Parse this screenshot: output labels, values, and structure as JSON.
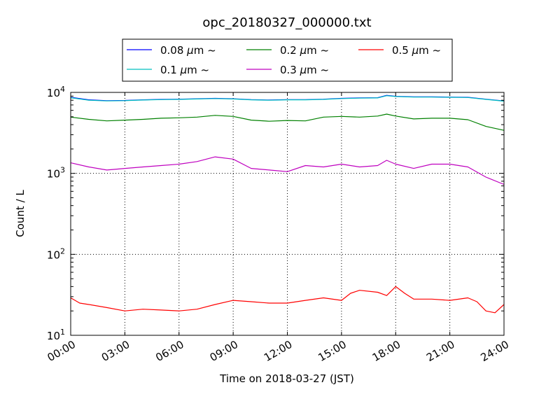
{
  "chart_data": {
    "type": "line",
    "title": "opc_20180327_000000.txt",
    "xlabel": "Time on 2018-03-27 (JST)",
    "ylabel": "Count / L",
    "x_unit": "hour",
    "x_ticks": [
      {
        "value": 0,
        "label": "00:00"
      },
      {
        "value": 3,
        "label": "03:00"
      },
      {
        "value": 6,
        "label": "06:00"
      },
      {
        "value": 9,
        "label": "09:00"
      },
      {
        "value": 12,
        "label": "12:00"
      },
      {
        "value": 15,
        "label": "15:00"
      },
      {
        "value": 18,
        "label": "18:00"
      },
      {
        "value": 21,
        "label": "21:00"
      },
      {
        "value": 24,
        "label": "24:00"
      }
    ],
    "y_ticks": [
      {
        "value": 10,
        "base": "10",
        "exp": "1"
      },
      {
        "value": 100,
        "base": "10",
        "exp": "2"
      },
      {
        "value": 1000,
        "base": "10",
        "exp": "3"
      },
      {
        "value": 10000,
        "base": "10",
        "exp": "4"
      }
    ],
    "xlim": [
      0,
      24
    ],
    "ylim": [
      10,
      10000
    ],
    "yscale": "log",
    "grid": true,
    "legend_position": "top, above plot, 3 columns",
    "legend_suffix": "~",
    "series": [
      {
        "name": "0.08 μm ~",
        "size": "0.08",
        "color": "#0000ff",
        "values": [
          [
            0,
            8700
          ],
          [
            1,
            8100
          ],
          [
            2,
            7900
          ],
          [
            3,
            7950
          ],
          [
            4,
            8100
          ],
          [
            5,
            8200
          ],
          [
            6,
            8250
          ],
          [
            7,
            8350
          ],
          [
            8,
            8450
          ],
          [
            9,
            8350
          ],
          [
            10,
            8150
          ],
          [
            11,
            8050
          ],
          [
            12,
            8150
          ],
          [
            13,
            8150
          ],
          [
            14,
            8250
          ],
          [
            15,
            8450
          ],
          [
            16,
            8550
          ],
          [
            17,
            8600
          ],
          [
            17.5,
            9200
          ],
          [
            18,
            8950
          ],
          [
            19,
            8800
          ],
          [
            20,
            8800
          ],
          [
            21,
            8750
          ],
          [
            22,
            8700
          ],
          [
            23,
            8250
          ],
          [
            24,
            7850
          ]
        ]
      },
      {
        "name": "0.1 μm ~",
        "size": "0.1",
        "color": "#00bfbf",
        "values": [
          [
            0,
            8600
          ],
          [
            1,
            8000
          ],
          [
            2,
            7850
          ],
          [
            3,
            7900
          ],
          [
            4,
            8050
          ],
          [
            5,
            8150
          ],
          [
            6,
            8200
          ],
          [
            7,
            8300
          ],
          [
            8,
            8400
          ],
          [
            9,
            8300
          ],
          [
            10,
            8100
          ],
          [
            11,
            8000
          ],
          [
            12,
            8100
          ],
          [
            13,
            8100
          ],
          [
            14,
            8200
          ],
          [
            15,
            8400
          ],
          [
            16,
            8500
          ],
          [
            17,
            8550
          ],
          [
            17.5,
            9100
          ],
          [
            18,
            8900
          ],
          [
            19,
            8750
          ],
          [
            20,
            8750
          ],
          [
            21,
            8700
          ],
          [
            22,
            8650
          ],
          [
            23,
            8200
          ],
          [
            24,
            7800
          ]
        ]
      },
      {
        "name": "0.2 μm ~",
        "size": "0.2",
        "color": "#008000",
        "values": [
          [
            0,
            4950
          ],
          [
            1,
            4650
          ],
          [
            2,
            4450
          ],
          [
            3,
            4550
          ],
          [
            4,
            4650
          ],
          [
            5,
            4800
          ],
          [
            6,
            4850
          ],
          [
            7,
            4950
          ],
          [
            8,
            5200
          ],
          [
            9,
            5050
          ],
          [
            10,
            4550
          ],
          [
            11,
            4400
          ],
          [
            12,
            4500
          ],
          [
            13,
            4450
          ],
          [
            14,
            4950
          ],
          [
            15,
            5050
          ],
          [
            16,
            4950
          ],
          [
            17,
            5100
          ],
          [
            17.5,
            5400
          ],
          [
            18,
            5100
          ],
          [
            19,
            4700
          ],
          [
            20,
            4800
          ],
          [
            21,
            4800
          ],
          [
            22,
            4600
          ],
          [
            23,
            3800
          ],
          [
            24,
            3400
          ]
        ]
      },
      {
        "name": "0.3 μm ~",
        "size": "0.3",
        "color": "#bf00bf",
        "values": [
          [
            0,
            1350
          ],
          [
            1,
            1200
          ],
          [
            2,
            1100
          ],
          [
            3,
            1150
          ],
          [
            4,
            1200
          ],
          [
            5,
            1250
          ],
          [
            6,
            1300
          ],
          [
            7,
            1400
          ],
          [
            8,
            1600
          ],
          [
            9,
            1500
          ],
          [
            10,
            1150
          ],
          [
            11,
            1100
          ],
          [
            12,
            1050
          ],
          [
            13,
            1250
          ],
          [
            14,
            1200
          ],
          [
            15,
            1300
          ],
          [
            16,
            1200
          ],
          [
            17,
            1250
          ],
          [
            17.5,
            1450
          ],
          [
            18,
            1300
          ],
          [
            19,
            1150
          ],
          [
            20,
            1300
          ],
          [
            21,
            1300
          ],
          [
            22,
            1200
          ],
          [
            23,
            900
          ],
          [
            24,
            730
          ]
        ]
      },
      {
        "name": "0.5 μm ~",
        "size": "0.5",
        "color": "#ff0000",
        "values": [
          [
            0,
            29
          ],
          [
            0.5,
            25
          ],
          [
            1,
            24
          ],
          [
            2,
            22
          ],
          [
            3,
            20
          ],
          [
            4,
            21
          ],
          [
            5,
            20.5
          ],
          [
            6,
            20
          ],
          [
            7,
            21
          ],
          [
            8,
            24
          ],
          [
            9,
            27
          ],
          [
            10,
            26
          ],
          [
            11,
            25
          ],
          [
            12,
            25
          ],
          [
            13,
            27
          ],
          [
            14,
            29
          ],
          [
            15,
            27
          ],
          [
            15.5,
            33
          ],
          [
            16,
            36
          ],
          [
            17,
            34
          ],
          [
            17.5,
            31
          ],
          [
            18,
            40
          ],
          [
            18.5,
            33
          ],
          [
            19,
            28
          ],
          [
            20,
            28
          ],
          [
            21,
            27
          ],
          [
            22,
            29
          ],
          [
            22.5,
            26
          ],
          [
            23,
            20
          ],
          [
            23.5,
            19
          ],
          [
            24,
            24
          ]
        ]
      }
    ]
  }
}
